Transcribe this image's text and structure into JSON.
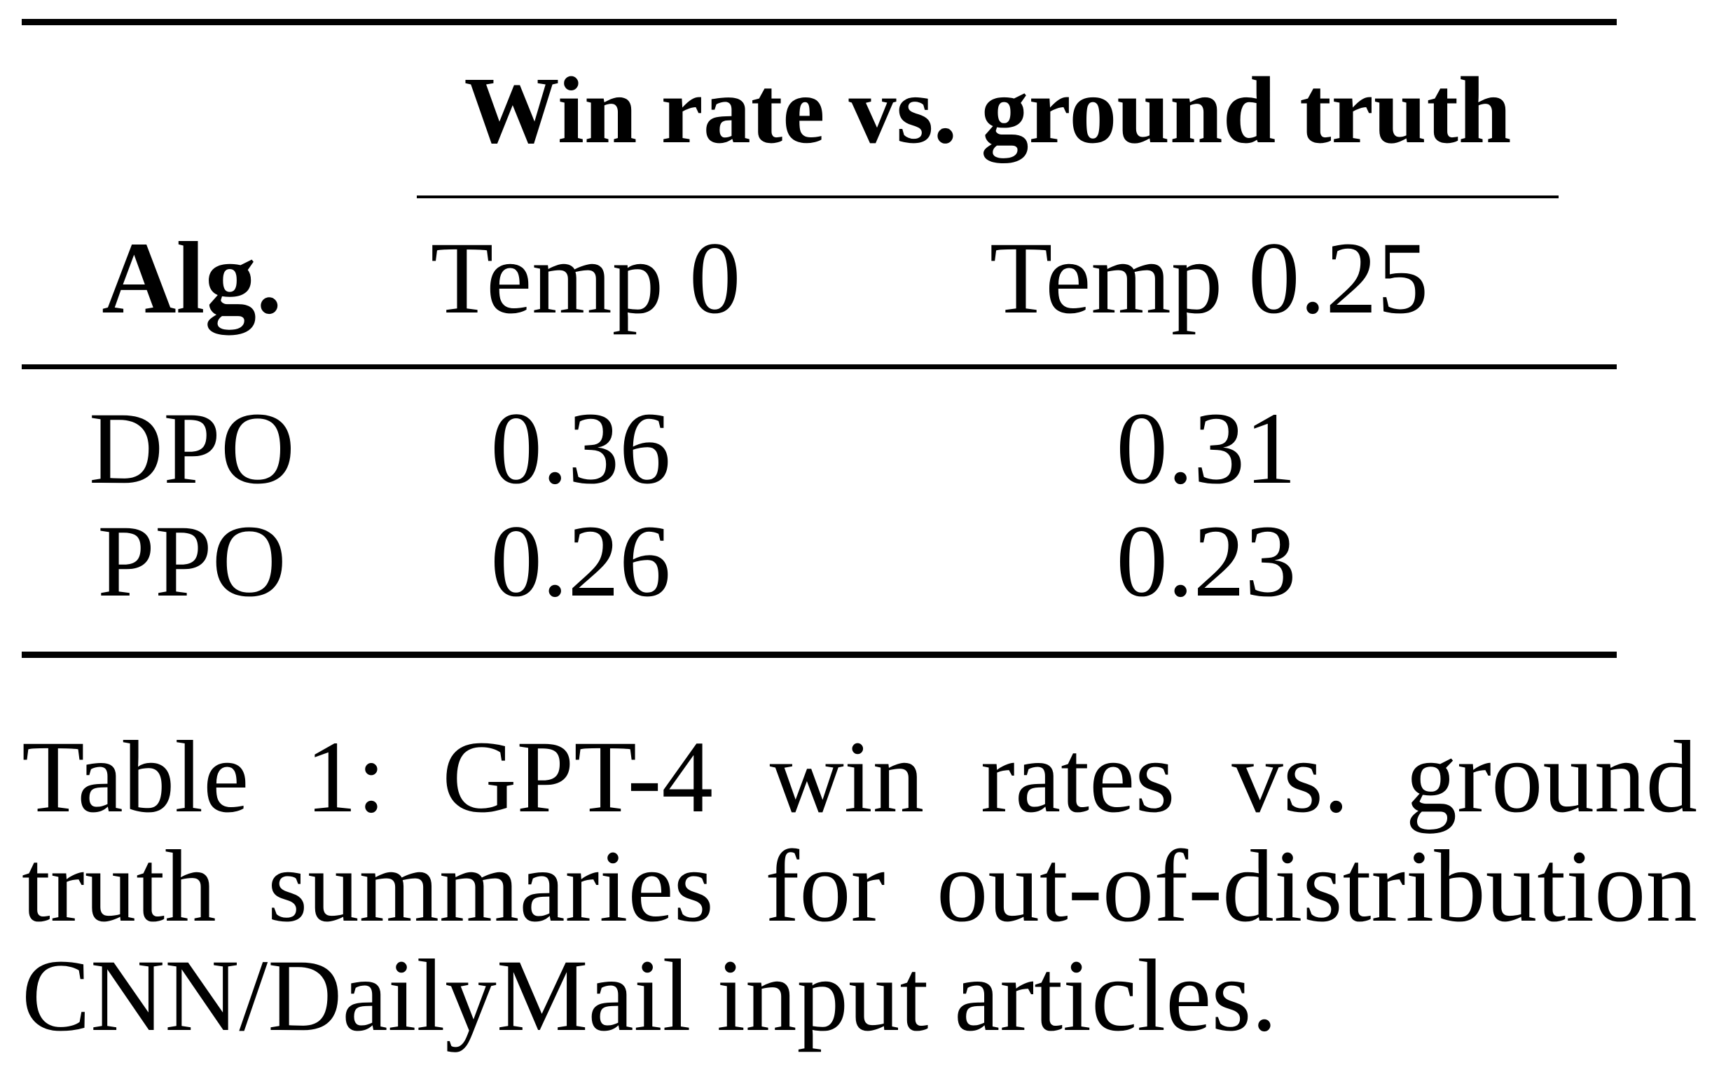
{
  "table": {
    "group_header": "Win rate vs. ground truth",
    "columns": [
      "Alg.",
      "Temp 0",
      "Temp 0.25"
    ],
    "rows": [
      [
        "DPO",
        "0.36",
        "0.31"
      ],
      [
        "PPO",
        "0.26",
        "0.23"
      ]
    ]
  },
  "caption": "Table 1: GPT-4 win rates vs. ground truth summaries for out-of-distribution CNN/DailyMail input articles."
}
